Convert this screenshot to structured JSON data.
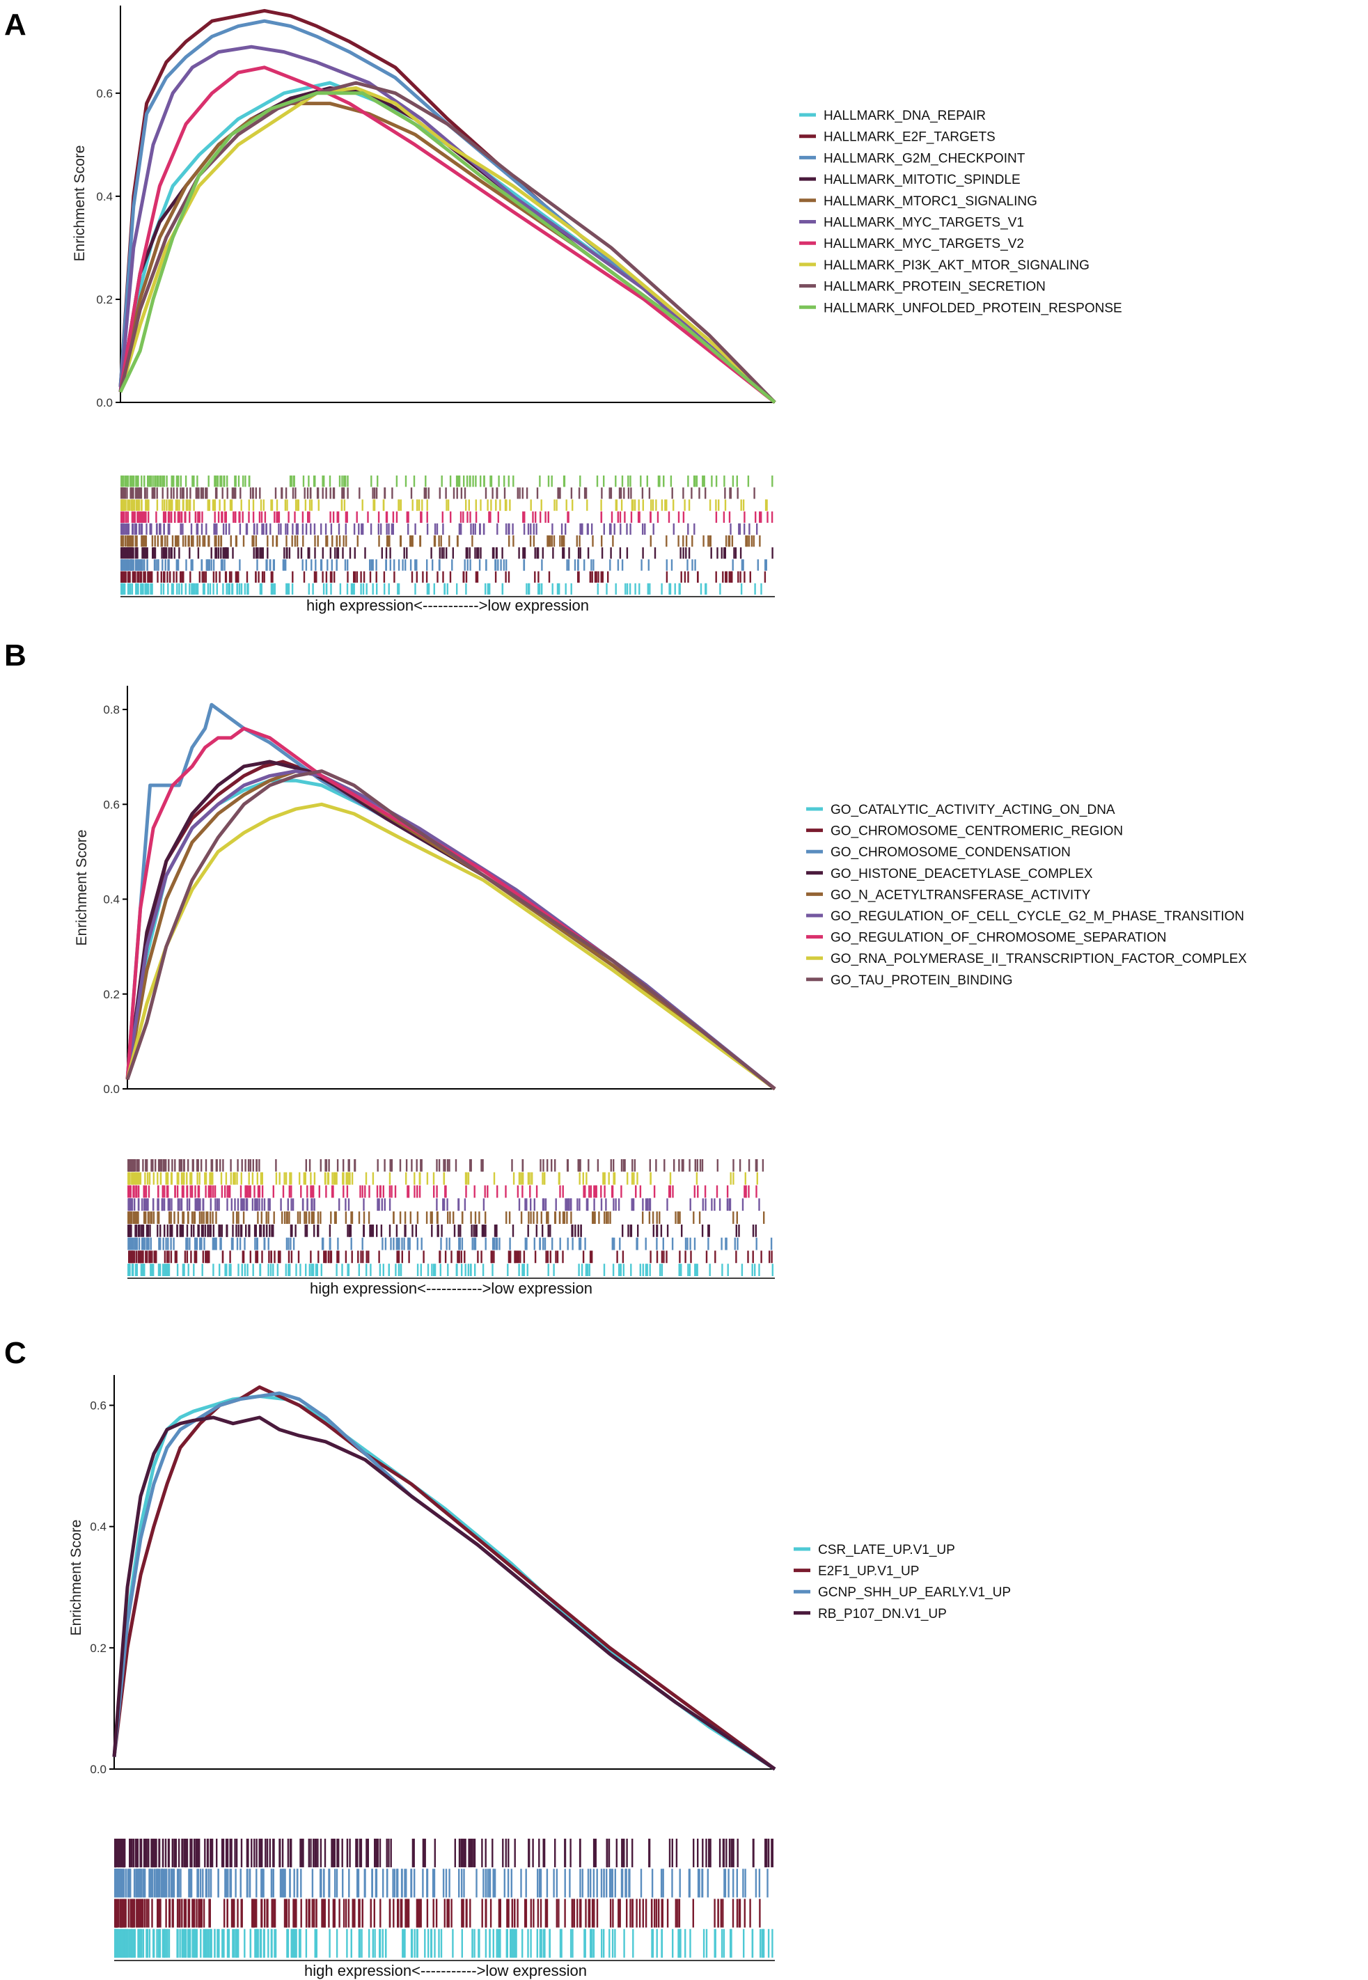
{
  "figure": {
    "panels": [
      {
        "letter": "A",
        "ylabel": "Enrichment Score",
        "yticks": [
          "0.0",
          "0.2",
          "0.4",
          "0.6"
        ],
        "rank_label": "high expression<----------->low expression",
        "legend": [
          "HALLMARK_DNA_REPAIR",
          "HALLMARK_E2F_TARGETS",
          "HALLMARK_G2M_CHECKPOINT",
          "HALLMARK_MITOTIC_SPINDLE",
          "HALLMARK_MTORC1_SIGNALING",
          "HALLMARK_MYC_TARGETS_V1",
          "HALLMARK_MYC_TARGETS_V2",
          "HALLMARK_PI3K_AKT_MTOR_SIGNALING",
          "HALLMARK_PROTEIN_SECRETION",
          "HALLMARK_UNFOLDED_PROTEIN_RESPONSE"
        ]
      },
      {
        "letter": "B",
        "ylabel": "Enrichment Score",
        "yticks": [
          "0.0",
          "0.2",
          "0.4",
          "0.6",
          "0.8"
        ],
        "rank_label": "high expression<----------->low expression",
        "legend": [
          "GO_CATALYTIC_ACTIVITY_ACTING_ON_DNA",
          "GO_CHROMOSOME_CENTROMERIC_REGION",
          "GO_CHROMOSOME_CONDENSATION",
          "GO_HISTONE_DEACETYLASE_COMPLEX",
          "GO_N_ACETYLTRANSFERASE_ACTIVITY",
          "GO_REGULATION_OF_CELL_CYCLE_G2_M_PHASE_TRANSITION",
          "GO_REGULATION_OF_CHROMOSOME_SEPARATION",
          "GO_RNA_POLYMERASE_II_TRANSCRIPTION_FACTOR_COMPLEX",
          "GO_TAU_PROTEIN_BINDING"
        ]
      },
      {
        "letter": "C",
        "ylabel": "Enrichment Score",
        "yticks": [
          "0.0",
          "0.2",
          "0.4",
          "0.6"
        ],
        "rank_label": "high expression<----------->low expression",
        "legend": [
          "CSR_LATE_UP.V1_UP",
          "E2F1_UP.V1_UP",
          "GCNP_SHH_UP_EARLY.V1_UP",
          "RB_P107_DN.V1_UP"
        ]
      }
    ]
  },
  "chart_data": [
    {
      "type": "line",
      "ylabel": "Enrichment Score",
      "xlabel": "high expression<----------->low expression",
      "x_range": [
        0,
        1
      ],
      "ylim": [
        0,
        0.77
      ],
      "grid": false,
      "legend_position": "right",
      "series": [
        {
          "name": "HALLMARK_DNA_REPAIR",
          "color": "#4EC9D4",
          "x": [
            0,
            0.02,
            0.05,
            0.08,
            0.12,
            0.18,
            0.25,
            0.32,
            0.4,
            0.5,
            0.65,
            0.8,
            1.0
          ],
          "values": [
            0.02,
            0.17,
            0.32,
            0.42,
            0.48,
            0.55,
            0.6,
            0.62,
            0.58,
            0.5,
            0.36,
            0.22,
            0.0
          ]
        },
        {
          "name": "HALLMARK_E2F_TARGETS",
          "color": "#7A1B2E",
          "x": [
            0,
            0.02,
            0.04,
            0.07,
            0.1,
            0.14,
            0.18,
            0.22,
            0.26,
            0.3,
            0.35,
            0.42,
            0.5,
            0.65,
            0.8,
            1.0
          ],
          "values": [
            0.03,
            0.4,
            0.58,
            0.66,
            0.7,
            0.74,
            0.75,
            0.76,
            0.75,
            0.73,
            0.7,
            0.65,
            0.55,
            0.38,
            0.22,
            0.0
          ]
        },
        {
          "name": "HALLMARK_G2M_CHECKPOINT",
          "color": "#5A8DBF",
          "x": [
            0,
            0.02,
            0.04,
            0.07,
            0.1,
            0.14,
            0.18,
            0.22,
            0.26,
            0.3,
            0.35,
            0.42,
            0.5,
            0.65,
            0.8,
            1.0
          ],
          "values": [
            0.03,
            0.38,
            0.56,
            0.63,
            0.67,
            0.71,
            0.73,
            0.74,
            0.73,
            0.71,
            0.68,
            0.63,
            0.54,
            0.38,
            0.22,
            0.0
          ]
        },
        {
          "name": "HALLMARK_MITOTIC_SPINDLE",
          "color": "#4A1A3C",
          "x": [
            0,
            0.03,
            0.06,
            0.1,
            0.15,
            0.2,
            0.26,
            0.32,
            0.38,
            0.45,
            0.55,
            0.7,
            0.85,
            1.0
          ],
          "values": [
            0.02,
            0.25,
            0.35,
            0.42,
            0.5,
            0.55,
            0.59,
            0.61,
            0.6,
            0.55,
            0.45,
            0.3,
            0.16,
            0.0
          ]
        },
        {
          "name": "HALLMARK_MTORC1_SIGNALING",
          "color": "#946434",
          "x": [
            0,
            0.03,
            0.06,
            0.1,
            0.15,
            0.2,
            0.26,
            0.32,
            0.38,
            0.45,
            0.55,
            0.7,
            0.85,
            1.0
          ],
          "values": [
            0.02,
            0.2,
            0.32,
            0.42,
            0.5,
            0.55,
            0.58,
            0.58,
            0.56,
            0.52,
            0.43,
            0.3,
            0.16,
            0.0
          ]
        },
        {
          "name": "HALLMARK_MYC_TARGETS_V1",
          "color": "#7458A0",
          "x": [
            0,
            0.02,
            0.05,
            0.08,
            0.11,
            0.15,
            0.2,
            0.25,
            0.3,
            0.38,
            0.46,
            0.6,
            0.8,
            1.0
          ],
          "values": [
            0.02,
            0.3,
            0.5,
            0.6,
            0.65,
            0.68,
            0.69,
            0.68,
            0.66,
            0.62,
            0.55,
            0.4,
            0.22,
            0.0
          ]
        },
        {
          "name": "HALLMARK_MYC_TARGETS_V2",
          "color": "#D9306C",
          "x": [
            0,
            0.03,
            0.06,
            0.1,
            0.14,
            0.18,
            0.22,
            0.26,
            0.3,
            0.35,
            0.45,
            0.6,
            0.8,
            1.0
          ],
          "values": [
            0.02,
            0.25,
            0.42,
            0.54,
            0.6,
            0.64,
            0.65,
            0.63,
            0.61,
            0.58,
            0.5,
            0.37,
            0.2,
            0.0
          ]
        },
        {
          "name": "HALLMARK_PI3K_AKT_MTOR_SIGNALING",
          "color": "#D4CC3E",
          "x": [
            0,
            0.03,
            0.07,
            0.12,
            0.18,
            0.24,
            0.3,
            0.36,
            0.42,
            0.5,
            0.6,
            0.75,
            0.9,
            1.0
          ],
          "values": [
            0.02,
            0.15,
            0.3,
            0.42,
            0.5,
            0.55,
            0.6,
            0.61,
            0.58,
            0.5,
            0.42,
            0.28,
            0.12,
            0.0
          ]
        },
        {
          "name": "HALLMARK_PROTEIN_SECRETION",
          "color": "#7A4E5E",
          "x": [
            0,
            0.03,
            0.07,
            0.12,
            0.18,
            0.24,
            0.3,
            0.36,
            0.42,
            0.5,
            0.6,
            0.75,
            0.9,
            1.0
          ],
          "values": [
            0.02,
            0.18,
            0.32,
            0.44,
            0.52,
            0.57,
            0.6,
            0.62,
            0.6,
            0.54,
            0.44,
            0.3,
            0.13,
            0.0
          ]
        },
        {
          "name": "HALLMARK_UNFOLDED_PROTEIN_RESPONSE",
          "color": "#7BC359",
          "x": [
            0,
            0.03,
            0.05,
            0.08,
            0.12,
            0.17,
            0.23,
            0.3,
            0.37,
            0.45,
            0.55,
            0.7,
            0.85,
            1.0
          ],
          "values": [
            0.02,
            0.1,
            0.2,
            0.32,
            0.44,
            0.52,
            0.57,
            0.6,
            0.6,
            0.54,
            0.44,
            0.3,
            0.16,
            0.0
          ]
        }
      ]
    },
    {
      "type": "line",
      "ylabel": "Enrichment Score",
      "xlabel": "high expression<----------->low expression",
      "x_range": [
        0,
        1
      ],
      "ylim": [
        0,
        0.85
      ],
      "grid": false,
      "legend_position": "right",
      "series": [
        {
          "name": "GO_CATALYTIC_ACTIVITY_ACTING_ON_DNA",
          "color": "#4EC9D4",
          "x": [
            0,
            0.03,
            0.06,
            0.1,
            0.14,
            0.18,
            0.22,
            0.26,
            0.3,
            0.36,
            0.45,
            0.6,
            0.8,
            1.0
          ],
          "values": [
            0.02,
            0.28,
            0.45,
            0.55,
            0.6,
            0.63,
            0.65,
            0.65,
            0.64,
            0.6,
            0.54,
            0.42,
            0.22,
            0.0
          ]
        },
        {
          "name": "GO_CHROMOSOME_CENTROMERIC_REGION",
          "color": "#7A1B2E",
          "x": [
            0,
            0.03,
            0.06,
            0.1,
            0.14,
            0.18,
            0.21,
            0.24,
            0.28,
            0.33,
            0.4,
            0.55,
            0.75,
            1.0
          ],
          "values": [
            0.02,
            0.3,
            0.48,
            0.57,
            0.62,
            0.66,
            0.68,
            0.69,
            0.67,
            0.63,
            0.57,
            0.45,
            0.27,
            0.0
          ]
        },
        {
          "name": "GO_CHROMOSOME_CONDENSATION",
          "color": "#5A8DBF",
          "x": [
            0,
            0.02,
            0.035,
            0.05,
            0.08,
            0.1,
            0.12,
            0.13,
            0.15,
            0.18,
            0.22,
            0.3,
            0.4,
            0.55,
            0.75,
            1.0
          ],
          "values": [
            0.02,
            0.38,
            0.64,
            0.64,
            0.64,
            0.72,
            0.76,
            0.81,
            0.79,
            0.76,
            0.73,
            0.65,
            0.57,
            0.45,
            0.26,
            0.0
          ]
        },
        {
          "name": "GO_HISTONE_DEACETYLASE_COMPLEX",
          "color": "#4A1A3C",
          "x": [
            0,
            0.03,
            0.06,
            0.1,
            0.14,
            0.18,
            0.22,
            0.25,
            0.28,
            0.32,
            0.4,
            0.55,
            0.75,
            1.0
          ],
          "values": [
            0.02,
            0.33,
            0.48,
            0.58,
            0.64,
            0.68,
            0.69,
            0.68,
            0.67,
            0.64,
            0.57,
            0.45,
            0.26,
            0.0
          ]
        },
        {
          "name": "GO_N_ACETYLTRANSFERASE_ACTIVITY",
          "color": "#946434",
          "x": [
            0,
            0.03,
            0.06,
            0.1,
            0.14,
            0.18,
            0.22,
            0.26,
            0.3,
            0.35,
            0.42,
            0.55,
            0.75,
            1.0
          ],
          "values": [
            0.02,
            0.25,
            0.4,
            0.52,
            0.58,
            0.62,
            0.65,
            0.67,
            0.66,
            0.62,
            0.56,
            0.45,
            0.26,
            0.0
          ]
        },
        {
          "name": "GO_REGULATION_OF_CELL_CYCLE_G2_M_PHASE_TRANSITION",
          "color": "#7458A0",
          "x": [
            0,
            0.03,
            0.06,
            0.1,
            0.14,
            0.18,
            0.22,
            0.26,
            0.3,
            0.36,
            0.45,
            0.6,
            0.8,
            1.0
          ],
          "values": [
            0.02,
            0.3,
            0.45,
            0.55,
            0.6,
            0.64,
            0.66,
            0.67,
            0.66,
            0.62,
            0.55,
            0.42,
            0.22,
            0.0
          ]
        },
        {
          "name": "GO_REGULATION_OF_CHROMOSOME_SEPARATION",
          "color": "#D9306C",
          "x": [
            0,
            0.02,
            0.04,
            0.07,
            0.1,
            0.12,
            0.14,
            0.16,
            0.18,
            0.22,
            0.3,
            0.4,
            0.55,
            0.75,
            1.0
          ],
          "values": [
            0.02,
            0.38,
            0.55,
            0.64,
            0.68,
            0.72,
            0.74,
            0.74,
            0.76,
            0.74,
            0.66,
            0.58,
            0.46,
            0.27,
            0.0
          ]
        },
        {
          "name": "GO_RNA_POLYMERASE_II_TRANSCRIPTION_FACTOR_COMPLEX",
          "color": "#D4CC3E",
          "x": [
            0,
            0.03,
            0.06,
            0.1,
            0.14,
            0.18,
            0.22,
            0.26,
            0.3,
            0.35,
            0.42,
            0.55,
            0.75,
            1.0
          ],
          "values": [
            0.02,
            0.18,
            0.3,
            0.42,
            0.5,
            0.54,
            0.57,
            0.59,
            0.6,
            0.58,
            0.53,
            0.44,
            0.25,
            0.0
          ]
        },
        {
          "name": "GO_TAU_PROTEIN_BINDING",
          "color": "#7A4E5E",
          "x": [
            0,
            0.03,
            0.06,
            0.1,
            0.14,
            0.18,
            0.22,
            0.26,
            0.3,
            0.35,
            0.42,
            0.55,
            0.75,
            1.0
          ],
          "values": [
            0.02,
            0.14,
            0.3,
            0.44,
            0.53,
            0.6,
            0.64,
            0.66,
            0.67,
            0.64,
            0.57,
            0.45,
            0.27,
            0.0
          ]
        }
      ]
    },
    {
      "type": "line",
      "ylabel": "Enrichment Score",
      "xlabel": "high expression<----------->low expression",
      "x_range": [
        0,
        1
      ],
      "ylim": [
        0,
        0.65
      ],
      "grid": false,
      "legend_position": "right",
      "series": [
        {
          "name": "CSR_LATE_UP.V1_UP",
          "color": "#4EC9D4",
          "x": [
            0,
            0.02,
            0.04,
            0.06,
            0.08,
            0.1,
            0.12,
            0.15,
            0.18,
            0.22,
            0.26,
            0.3,
            0.35,
            0.4,
            0.5,
            0.6,
            0.7,
            0.8,
            0.9,
            1.0
          ],
          "values": [
            0.02,
            0.25,
            0.4,
            0.5,
            0.56,
            0.58,
            0.59,
            0.6,
            0.61,
            0.615,
            0.61,
            0.59,
            0.55,
            0.51,
            0.43,
            0.34,
            0.24,
            0.15,
            0.07,
            0.0
          ]
        },
        {
          "name": "E2F1_UP.V1_UP",
          "color": "#7A1B2E",
          "x": [
            0,
            0.02,
            0.04,
            0.06,
            0.08,
            0.1,
            0.13,
            0.16,
            0.19,
            0.22,
            0.25,
            0.28,
            0.32,
            0.38,
            0.45,
            0.55,
            0.65,
            0.75,
            0.85,
            1.0
          ],
          "values": [
            0.02,
            0.2,
            0.32,
            0.4,
            0.47,
            0.53,
            0.57,
            0.6,
            0.61,
            0.63,
            0.615,
            0.6,
            0.57,
            0.52,
            0.47,
            0.38,
            0.29,
            0.2,
            0.12,
            0.0
          ]
        },
        {
          "name": "GCNP_SHH_UP_EARLY.V1_UP",
          "color": "#5A8DBF",
          "x": [
            0,
            0.02,
            0.04,
            0.06,
            0.08,
            0.1,
            0.13,
            0.16,
            0.19,
            0.22,
            0.25,
            0.28,
            0.32,
            0.38,
            0.45,
            0.55,
            0.65,
            0.75,
            0.85,
            1.0
          ],
          "values": [
            0.02,
            0.24,
            0.38,
            0.47,
            0.53,
            0.56,
            0.58,
            0.6,
            0.61,
            0.615,
            0.62,
            0.61,
            0.58,
            0.52,
            0.45,
            0.37,
            0.28,
            0.19,
            0.11,
            0.0
          ]
        },
        {
          "name": "RB_P107_DN.V1_UP",
          "color": "#4A1A3C",
          "x": [
            0,
            0.02,
            0.04,
            0.06,
            0.08,
            0.1,
            0.12,
            0.15,
            0.18,
            0.22,
            0.25,
            0.28,
            0.32,
            0.38,
            0.45,
            0.55,
            0.65,
            0.75,
            0.85,
            1.0
          ],
          "values": [
            0.02,
            0.3,
            0.45,
            0.52,
            0.56,
            0.57,
            0.575,
            0.58,
            0.57,
            0.58,
            0.56,
            0.55,
            0.54,
            0.51,
            0.45,
            0.37,
            0.28,
            0.19,
            0.11,
            0.0
          ]
        }
      ]
    }
  ]
}
